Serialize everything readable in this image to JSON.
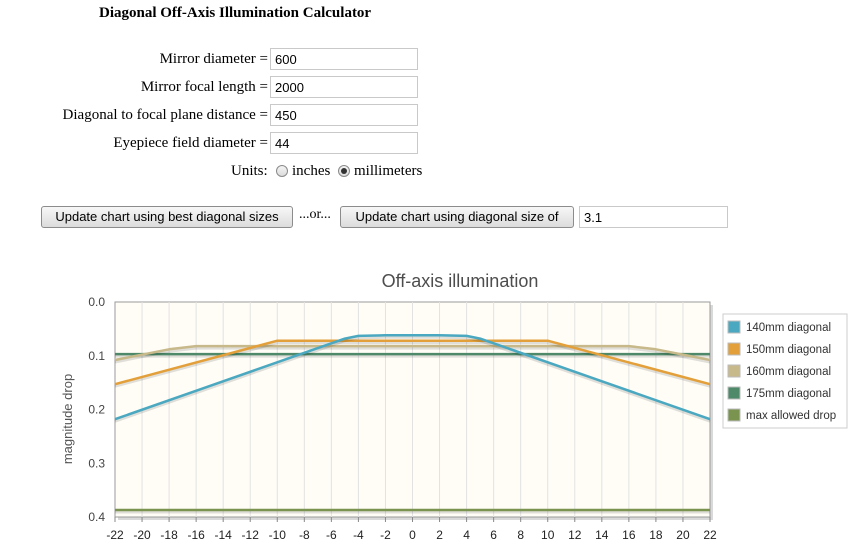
{
  "page": {
    "title": "Diagonal Off-Axis Illumination Calculator"
  },
  "form": {
    "fields": [
      {
        "label": "Mirror diameter =",
        "value": "600"
      },
      {
        "label": "Mirror focal length =",
        "value": "2000"
      },
      {
        "label": "Diagonal to focal plane distance =",
        "value": "450"
      },
      {
        "label": "Eyepiece field diameter =",
        "value": "44"
      }
    ],
    "units": {
      "label": "Units:",
      "options": [
        "inches",
        "millimeters"
      ],
      "selected": "millimeters"
    }
  },
  "actions": {
    "best_button": "Update chart using best diagonal sizes",
    "or_text": "...or...",
    "size_button": "Update chart using diagonal size of",
    "size_value": "3.1"
  },
  "chart_data": {
    "type": "line",
    "title": "Off-axis illumination",
    "xlabel": "",
    "ylabel": "magnitude drop",
    "xlim": [
      -22,
      22
    ],
    "ylim": [
      0.0,
      0.4
    ],
    "y_inverted": true,
    "x_ticks": [
      -22,
      -20,
      -18,
      -16,
      -14,
      -12,
      -10,
      -8,
      -6,
      -4,
      -2,
      0,
      2,
      4,
      6,
      8,
      10,
      12,
      14,
      16,
      18,
      20,
      22
    ],
    "y_ticks": [
      0.0,
      0.1,
      0.2,
      0.3,
      0.4
    ],
    "y_tick_labels": [
      "0.0",
      "0.1",
      "0.2",
      "0.3",
      "0.4"
    ],
    "grid": "vertical",
    "legend_position": "right",
    "series": [
      {
        "name": "140mm diagonal",
        "color": "#4aa8c0",
        "points": [
          [
            -22,
            0.218
          ],
          [
            -5,
            0.068
          ],
          [
            -4,
            0.063
          ],
          [
            -2,
            0.062
          ],
          [
            0,
            0.062
          ],
          [
            2,
            0.062
          ],
          [
            4,
            0.063
          ],
          [
            5,
            0.068
          ],
          [
            22,
            0.218
          ]
        ]
      },
      {
        "name": "150mm diagonal",
        "color": "#e3a03a",
        "points": [
          [
            -22,
            0.153
          ],
          [
            -10,
            0.072
          ],
          [
            10,
            0.072
          ],
          [
            22,
            0.153
          ]
        ]
      },
      {
        "name": "160mm diagonal",
        "color": "#c8b98a",
        "points": [
          [
            -22,
            0.108
          ],
          [
            -18,
            0.088
          ],
          [
            -16,
            0.082
          ],
          [
            16,
            0.082
          ],
          [
            18,
            0.088
          ],
          [
            22,
            0.108
          ]
        ]
      },
      {
        "name": "175mm diagonal",
        "color": "#4e8a6a",
        "points": [
          [
            -22,
            0.097
          ],
          [
            22,
            0.097
          ]
        ]
      },
      {
        "name": "max allowed drop",
        "color": "#7a9450",
        "points": [
          [
            -22,
            0.387
          ],
          [
            22,
            0.387
          ]
        ]
      }
    ]
  }
}
